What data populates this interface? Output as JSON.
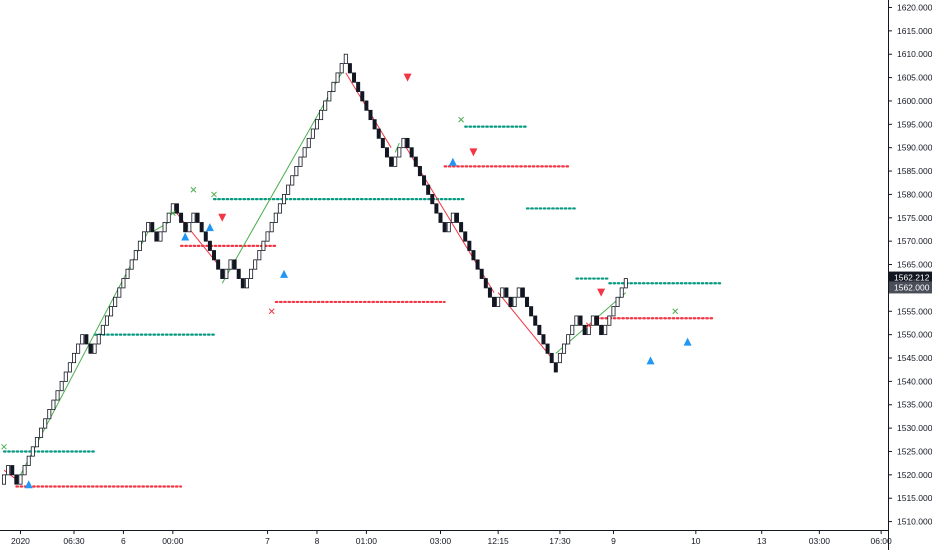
{
  "chart_data": {
    "type": "renko",
    "y_ticks": [
      1510,
      1515,
      1520,
      1525,
      1530,
      1535,
      1540,
      1545,
      1550,
      1555,
      1560,
      1565,
      1570,
      1575,
      1580,
      1585,
      1590,
      1595,
      1600,
      1605,
      1610,
      1615,
      1620
    ],
    "y_tick_labels": [
      "1510.000",
      "1515.000",
      "1520.000",
      "1525.000",
      "1530.000",
      "1535.000",
      "1540.000",
      "1545.000",
      "1550.000",
      "1555.000",
      "1560.000",
      "1565.000",
      "1570.000",
      "1575.000",
      "1580.000",
      "1585.000",
      "1590.000",
      "1595.000",
      "1600.000",
      "1605.000",
      "1610.000",
      "1615.000",
      "1620.000"
    ],
    "ylim": [
      1508.2,
      1621.6
    ],
    "x_tick_labels": [
      "2020",
      "06:30",
      "6",
      "00:00",
      "7",
      "8",
      "01:00",
      "03:00",
      "12:15",
      "17:30",
      "9",
      "10",
      "13",
      "03:00",
      "06:00"
    ],
    "x_tick_index": [
      4,
      17,
      29,
      41,
      64,
      76,
      88,
      106,
      120,
      135,
      148,
      168,
      184,
      198,
      213
    ],
    "brick_size": 2,
    "bricks": [
      {
        "o": 1518,
        "c": 1520
      },
      {
        "o": 1520,
        "c": 1522
      },
      {
        "o": 1522,
        "c": 1520
      },
      {
        "o": 1520,
        "c": 1518
      },
      {
        "o": 1518,
        "c": 1520
      },
      {
        "o": 1520,
        "c": 1522
      },
      {
        "o": 1522,
        "c": 1524
      },
      {
        "o": 1524,
        "c": 1526
      },
      {
        "o": 1526,
        "c": 1528
      },
      {
        "o": 1528,
        "c": 1530
      },
      {
        "o": 1530,
        "c": 1532
      },
      {
        "o": 1532,
        "c": 1534
      },
      {
        "o": 1534,
        "c": 1536
      },
      {
        "o": 1536,
        "c": 1538
      },
      {
        "o": 1538,
        "c": 1540
      },
      {
        "o": 1540,
        "c": 1542
      },
      {
        "o": 1542,
        "c": 1544
      },
      {
        "o": 1544,
        "c": 1546
      },
      {
        "o": 1546,
        "c": 1548
      },
      {
        "o": 1548,
        "c": 1550
      },
      {
        "o": 1550,
        "c": 1548
      },
      {
        "o": 1548,
        "c": 1546
      },
      {
        "o": 1546,
        "c": 1548
      },
      {
        "o": 1548,
        "c": 1550
      },
      {
        "o": 1550,
        "c": 1552
      },
      {
        "o": 1552,
        "c": 1554
      },
      {
        "o": 1554,
        "c": 1556
      },
      {
        "o": 1556,
        "c": 1558
      },
      {
        "o": 1558,
        "c": 1560
      },
      {
        "o": 1560,
        "c": 1562
      },
      {
        "o": 1562,
        "c": 1564
      },
      {
        "o": 1564,
        "c": 1566
      },
      {
        "o": 1566,
        "c": 1568
      },
      {
        "o": 1568,
        "c": 1570
      },
      {
        "o": 1570,
        "c": 1572
      },
      {
        "o": 1572,
        "c": 1574
      },
      {
        "o": 1574,
        "c": 1572
      },
      {
        "o": 1572,
        "c": 1570
      },
      {
        "o": 1570,
        "c": 1572
      },
      {
        "o": 1572,
        "c": 1574
      },
      {
        "o": 1574,
        "c": 1576
      },
      {
        "o": 1576,
        "c": 1578
      },
      {
        "o": 1578,
        "c": 1576
      },
      {
        "o": 1576,
        "c": 1574
      },
      {
        "o": 1574,
        "c": 1572
      },
      {
        "o": 1572,
        "c": 1574
      },
      {
        "o": 1574,
        "c": 1576
      },
      {
        "o": 1576,
        "c": 1574
      },
      {
        "o": 1574,
        "c": 1572
      },
      {
        "o": 1572,
        "c": 1570
      },
      {
        "o": 1570,
        "c": 1568
      },
      {
        "o": 1568,
        "c": 1566
      },
      {
        "o": 1566,
        "c": 1564
      },
      {
        "o": 1564,
        "c": 1562
      },
      {
        "o": 1562,
        "c": 1564
      },
      {
        "o": 1564,
        "c": 1566
      },
      {
        "o": 1566,
        "c": 1564
      },
      {
        "o": 1564,
        "c": 1562
      },
      {
        "o": 1562,
        "c": 1560
      },
      {
        "o": 1560,
        "c": 1562
      },
      {
        "o": 1562,
        "c": 1564
      },
      {
        "o": 1564,
        "c": 1566
      },
      {
        "o": 1566,
        "c": 1568
      },
      {
        "o": 1568,
        "c": 1570
      },
      {
        "o": 1570,
        "c": 1572
      },
      {
        "o": 1572,
        "c": 1574
      },
      {
        "o": 1574,
        "c": 1576
      },
      {
        "o": 1576,
        "c": 1578
      },
      {
        "o": 1578,
        "c": 1580
      },
      {
        "o": 1580,
        "c": 1582
      },
      {
        "o": 1582,
        "c": 1584
      },
      {
        "o": 1584,
        "c": 1586
      },
      {
        "o": 1586,
        "c": 1588
      },
      {
        "o": 1588,
        "c": 1590
      },
      {
        "o": 1590,
        "c": 1592
      },
      {
        "o": 1592,
        "c": 1594
      },
      {
        "o": 1594,
        "c": 1596
      },
      {
        "o": 1596,
        "c": 1598
      },
      {
        "o": 1598,
        "c": 1600
      },
      {
        "o": 1600,
        "c": 1602
      },
      {
        "o": 1602,
        "c": 1604
      },
      {
        "o": 1604,
        "c": 1606
      },
      {
        "o": 1606,
        "c": 1608
      },
      {
        "o": 1608,
        "c": 1610
      },
      {
        "o": 1608,
        "c": 1606
      },
      {
        "o": 1606,
        "c": 1604
      },
      {
        "o": 1604,
        "c": 1602
      },
      {
        "o": 1602,
        "c": 1600
      },
      {
        "o": 1600,
        "c": 1598
      },
      {
        "o": 1598,
        "c": 1596
      },
      {
        "o": 1596,
        "c": 1594
      },
      {
        "o": 1594,
        "c": 1592
      },
      {
        "o": 1592,
        "c": 1590
      },
      {
        "o": 1590,
        "c": 1588
      },
      {
        "o": 1588,
        "c": 1586
      },
      {
        "o": 1586,
        "c": 1588
      },
      {
        "o": 1588,
        "c": 1590
      },
      {
        "o": 1590,
        "c": 1592
      },
      {
        "o": 1592,
        "c": 1590
      },
      {
        "o": 1590,
        "c": 1588
      },
      {
        "o": 1588,
        "c": 1586
      },
      {
        "o": 1586,
        "c": 1584
      },
      {
        "o": 1584,
        "c": 1582
      },
      {
        "o": 1582,
        "c": 1580
      },
      {
        "o": 1580,
        "c": 1578
      },
      {
        "o": 1578,
        "c": 1576
      },
      {
        "o": 1576,
        "c": 1574
      },
      {
        "o": 1574,
        "c": 1572
      },
      {
        "o": 1572,
        "c": 1574
      },
      {
        "o": 1574,
        "c": 1576
      },
      {
        "o": 1576,
        "c": 1574
      },
      {
        "o": 1574,
        "c": 1572
      },
      {
        "o": 1572,
        "c": 1570
      },
      {
        "o": 1570,
        "c": 1568
      },
      {
        "o": 1568,
        "c": 1566
      },
      {
        "o": 1566,
        "c": 1564
      },
      {
        "o": 1564,
        "c": 1562
      },
      {
        "o": 1562,
        "c": 1560
      },
      {
        "o": 1560,
        "c": 1558
      },
      {
        "o": 1558,
        "c": 1556
      },
      {
        "o": 1556,
        "c": 1558
      },
      {
        "o": 1558,
        "c": 1560
      },
      {
        "o": 1560,
        "c": 1558
      },
      {
        "o": 1558,
        "c": 1556
      },
      {
        "o": 1556,
        "c": 1558
      },
      {
        "o": 1558,
        "c": 1560
      },
      {
        "o": 1560,
        "c": 1558
      },
      {
        "o": 1558,
        "c": 1556
      },
      {
        "o": 1556,
        "c": 1554
      },
      {
        "o": 1554,
        "c": 1552
      },
      {
        "o": 1552,
        "c": 1550
      },
      {
        "o": 1550,
        "c": 1548
      },
      {
        "o": 1548,
        "c": 1546
      },
      {
        "o": 1546,
        "c": 1544
      },
      {
        "o": 1544,
        "c": 1542
      },
      {
        "o": 1544,
        "c": 1546
      },
      {
        "o": 1546,
        "c": 1548
      },
      {
        "o": 1548,
        "c": 1550
      },
      {
        "o": 1550,
        "c": 1552
      },
      {
        "o": 1552,
        "c": 1554
      },
      {
        "o": 1554,
        "c": 1552
      },
      {
        "o": 1552,
        "c": 1550
      },
      {
        "o": 1550,
        "c": 1552
      },
      {
        "o": 1552,
        "c": 1554
      },
      {
        "o": 1554,
        "c": 1552
      },
      {
        "o": 1552,
        "c": 1550
      },
      {
        "o": 1550,
        "c": 1552
      },
      {
        "o": 1552,
        "c": 1554
      },
      {
        "o": 1554,
        "c": 1556
      },
      {
        "o": 1556,
        "c": 1558
      },
      {
        "o": 1558,
        "c": 1560
      },
      {
        "o": 1560,
        "c": 1562
      }
    ],
    "supertrend": [
      {
        "from": 0,
        "to": 3,
        "color": "red",
        "y0": 1521,
        "y1": 1519
      },
      {
        "from": 4,
        "to": 35,
        "color": "green",
        "y0": 1520,
        "y1": 1572
      },
      {
        "from": 36,
        "to": 40,
        "color": "green",
        "y0": 1572,
        "y1": 1574
      },
      {
        "from": 41,
        "to": 52,
        "color": "red",
        "y0": 1577,
        "y1": 1565
      },
      {
        "from": 53,
        "to": 82,
        "color": "green",
        "y0": 1561,
        "y1": 1606
      },
      {
        "from": 83,
        "to": 94,
        "color": "red",
        "y0": 1606,
        "y1": 1590
      },
      {
        "from": 95,
        "to": 96,
        "color": "green",
        "y0": 1589,
        "y1": 1591
      },
      {
        "from": 97,
        "to": 119,
        "color": "red",
        "y0": 1591,
        "y1": 1559
      },
      {
        "from": 120,
        "to": 133,
        "color": "red",
        "y0": 1559,
        "y1": 1545
      },
      {
        "from": 134,
        "to": 151,
        "color": "green",
        "y0": 1546,
        "y1": 1559
      }
    ],
    "levels": [
      {
        "color": "#089981",
        "y": 1525,
        "from": 0,
        "to": 22
      },
      {
        "color": "#f23645",
        "y": 1517.5,
        "from": 3,
        "to": 43
      },
      {
        "color": "#089981",
        "y": 1550,
        "from": 22,
        "to": 51
      },
      {
        "color": "#f23645",
        "y": 1569,
        "from": 43,
        "to": 66
      },
      {
        "color": "#089981",
        "y": 1579,
        "from": 51,
        "to": 112
      },
      {
        "color": "#f23645",
        "y": 1557,
        "from": 66,
        "to": 107
      },
      {
        "color": "#089981",
        "y": 1594.5,
        "from": 112,
        "to": 127
      },
      {
        "color": "#f23645",
        "y": 1586,
        "from": 107,
        "to": 137
      },
      {
        "color": "#089981",
        "y": 1577,
        "from": 127,
        "to": 139
      },
      {
        "color": "#089981",
        "y": 1562,
        "from": 139,
        "to": 147
      },
      {
        "color": "#089981",
        "y": 1561,
        "from": 147,
        "to": 174
      },
      {
        "color": "#f23645",
        "y": 1553.5,
        "from": 143,
        "to": 172
      }
    ],
    "buy_signals": [
      {
        "i": 6,
        "y": 1518
      },
      {
        "i": 44,
        "y": 1571
      },
      {
        "i": 50,
        "y": 1573
      },
      {
        "i": 68,
        "y": 1563
      },
      {
        "i": 109,
        "y": 1587
      },
      {
        "i": 157,
        "y": 1544.5
      },
      {
        "i": 166,
        "y": 1548.5
      }
    ],
    "sell_signals": [
      {
        "i": 53,
        "y": 1575
      },
      {
        "i": 98,
        "y": 1605
      },
      {
        "i": 114,
        "y": 1589
      },
      {
        "i": 145,
        "y": 1559
      }
    ],
    "x_markers_green": [
      {
        "i": 0,
        "y": 1526
      },
      {
        "i": 41,
        "y": 1576
      },
      {
        "i": 46,
        "y": 1581
      },
      {
        "i": 51,
        "y": 1580
      },
      {
        "i": 111,
        "y": 1596
      },
      {
        "i": 163,
        "y": 1555
      }
    ],
    "x_markers_red": [
      {
        "i": 65,
        "y": 1555
      },
      {
        "i": 142,
        "y": 1552
      }
    ],
    "price_labels": [
      {
        "text": "1562.212",
        "y": 1562.212,
        "bg": "#131722",
        "fg": "#ffffff"
      },
      {
        "text": "1562.000",
        "y": 1560.1,
        "bg": "#4a4e59",
        "fg": "#ffffff"
      }
    ],
    "colors": {
      "up_brick": "#ffffff",
      "down_brick": "#131722",
      "buy": "#2196f3",
      "sell": "#f23645",
      "st_green": "#4caf50",
      "st_red": "#f23645",
      "grid": "#e0e3eb"
    }
  }
}
